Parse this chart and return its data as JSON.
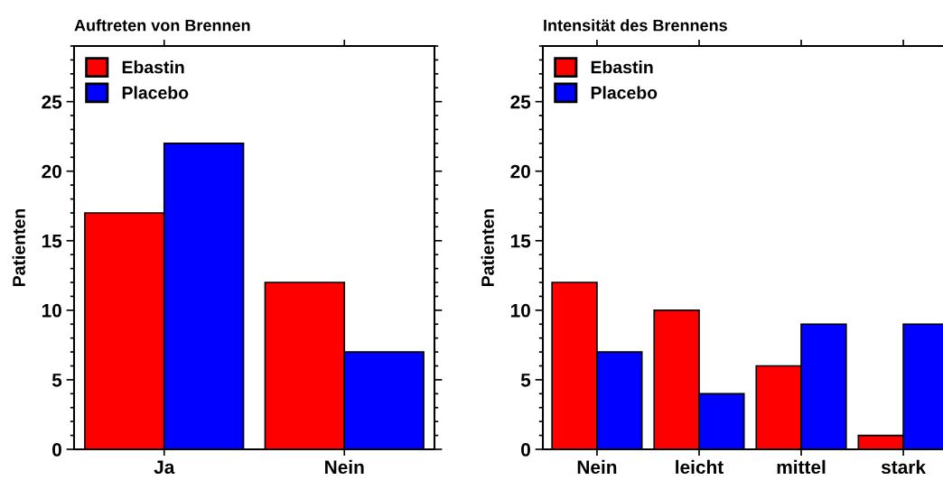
{
  "chart_data": [
    {
      "type": "bar",
      "title": "Auftreten von Brennen",
      "ylabel": "Patienten",
      "categories": [
        "Ja",
        "Nein"
      ],
      "series": [
        {
          "name": "Ebastin",
          "color": "#ff0000",
          "values": [
            17,
            12
          ]
        },
        {
          "name": "Placebo",
          "color": "#0000ff",
          "values": [
            22,
            7
          ]
        }
      ],
      "ylim": [
        0,
        29
      ],
      "yticks": [
        0,
        5,
        10,
        15,
        20,
        25
      ],
      "legend": "top left",
      "grid": false
    },
    {
      "type": "bar",
      "title": "Intensität des Brennens",
      "ylabel": "Patienten",
      "categories": [
        "Nein",
        "leicht",
        "mittel",
        "stark"
      ],
      "series": [
        {
          "name": "Ebastin",
          "color": "#ff0000",
          "values": [
            12,
            10,
            6,
            1
          ]
        },
        {
          "name": "Placebo",
          "color": "#0000ff",
          "values": [
            7,
            4,
            9,
            9
          ]
        }
      ],
      "ylim": [
        0,
        29
      ],
      "yticks": [
        0,
        5,
        10,
        15,
        20,
        25
      ],
      "legend": "top left",
      "grid": false
    }
  ]
}
